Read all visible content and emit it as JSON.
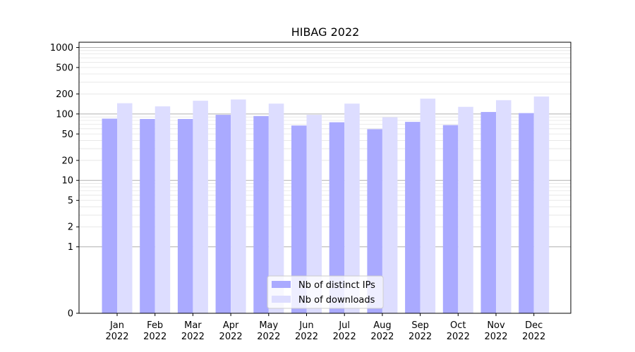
{
  "chart_data": {
    "type": "bar",
    "title": "HIBAG 2022",
    "xlabel": "",
    "ylabel": "",
    "yscale": "symlog",
    "ylim": [
      0,
      1200
    ],
    "yticks": [
      0,
      1,
      2,
      5,
      10,
      20,
      50,
      100,
      200,
      500,
      1000
    ],
    "ytick_labels": [
      "0",
      "1",
      "2",
      "5",
      "10",
      "20",
      "50",
      "100",
      "200",
      "500",
      "1000"
    ],
    "categories": [
      [
        "Jan",
        "2022"
      ],
      [
        "Feb",
        "2022"
      ],
      [
        "Mar",
        "2022"
      ],
      [
        "Apr",
        "2022"
      ],
      [
        "May",
        "2022"
      ],
      [
        "Jun",
        "2022"
      ],
      [
        "Jul",
        "2022"
      ],
      [
        "Aug",
        "2022"
      ],
      [
        "Sep",
        "2022"
      ],
      [
        "Oct",
        "2022"
      ],
      [
        "Nov",
        "2022"
      ],
      [
        "Dec",
        "2022"
      ]
    ],
    "series": [
      {
        "name": "Nb of distinct IPs",
        "color": "#aaaaff",
        "values": [
          85,
          84,
          84,
          97,
          93,
          67,
          75,
          59,
          76,
          68,
          107,
          103
        ]
      },
      {
        "name": "Nb of downloads",
        "color": "#ddddff",
        "values": [
          145,
          130,
          158,
          165,
          143,
          97,
          143,
          89,
          170,
          128,
          161,
          183
        ]
      }
    ],
    "grid": true,
    "legend": "bottom-center"
  }
}
